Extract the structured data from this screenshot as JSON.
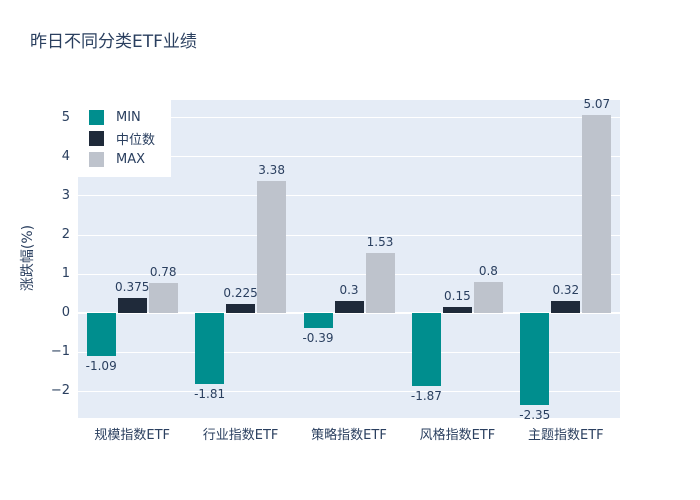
{
  "chart_data": {
    "type": "bar",
    "title": "昨日不同分类ETF业绩",
    "ylabel": "涨跌幅(%)",
    "xlabel": "",
    "categories": [
      "规模指数ETF",
      "行业指数ETF",
      "策略指数ETF",
      "风格指数ETF",
      "主题指数ETF"
    ],
    "series": [
      {
        "name": "MIN",
        "slug": "min",
        "color": "#008e8e",
        "values": [
          -1.09,
          -1.81,
          -0.39,
          -1.87,
          -2.35
        ],
        "labels": [
          "-1.09",
          "-1.81",
          "-0.39",
          "-1.87",
          "-2.35"
        ]
      },
      {
        "name": "中位数",
        "slug": "median",
        "color": "#1f2a3a",
        "values": [
          0.375,
          0.225,
          0.3,
          0.15,
          0.32
        ],
        "labels": [
          "0.375",
          "0.225",
          "0.3",
          "0.15",
          "0.32"
        ]
      },
      {
        "name": "MAX",
        "slug": "max",
        "color": "#bec3cc",
        "values": [
          0.78,
          3.38,
          1.53,
          0.8,
          5.07
        ],
        "labels": [
          "0.78",
          "3.38",
          "1.53",
          "0.8",
          "5.07"
        ]
      }
    ],
    "yticks": [
      -2,
      -1,
      0,
      1,
      2,
      3,
      4,
      5
    ],
    "ylim": [
      -2.69,
      5.46
    ],
    "grid": true,
    "legend_position": "top-left",
    "plot_bgcolor": "#e5ecf6",
    "gridcolor": "#ffffff",
    "text_color": "#2a3f5f"
  }
}
